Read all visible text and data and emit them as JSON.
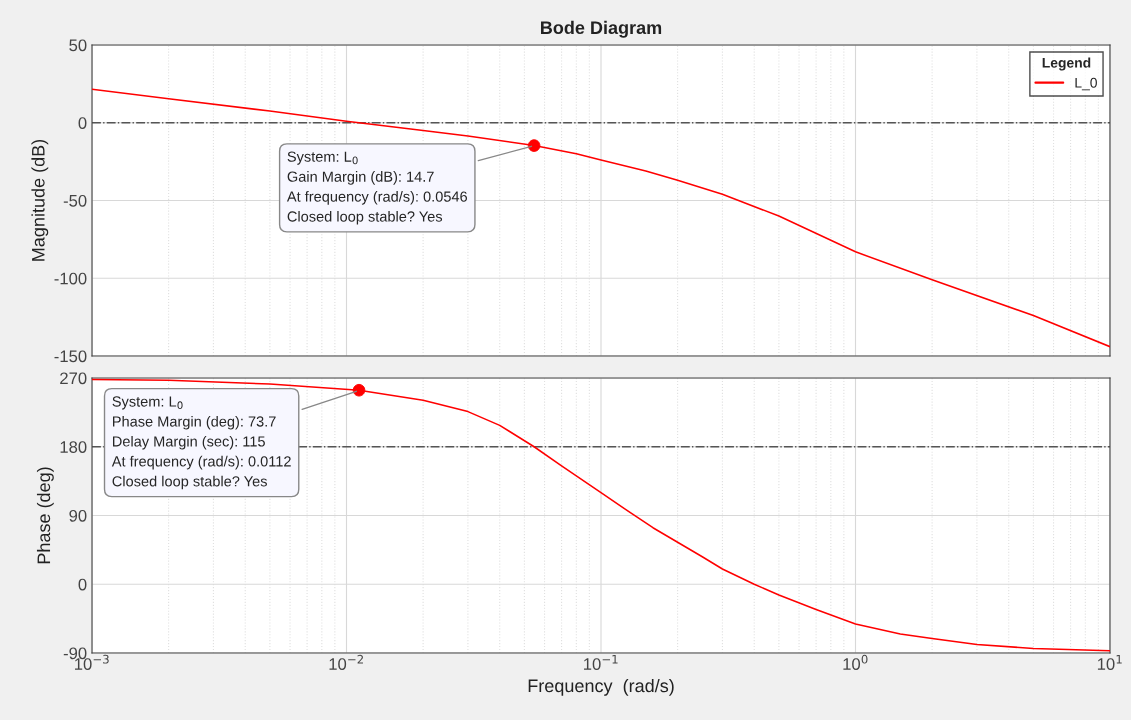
{
  "chart_data": [
    {
      "type": "line",
      "title": "Bode Diagram",
      "ylabel": "Magnitude (dB)",
      "log": "x",
      "grid": true,
      "legend": "top right",
      "legend_title": "Legend",
      "tick_labels": "y",
      "x": [
        0.001,
        0.002,
        0.005,
        0.01,
        0.02,
        0.03,
        0.0546,
        0.08,
        0.1,
        0.15,
        0.2,
        0.3,
        0.5,
        1,
        2,
        5,
        10
      ],
      "xlim": [
        0.001,
        10
      ],
      "xticks": [
        0.001,
        0.01,
        0.1,
        1,
        10
      ],
      "ylim": [
        -150,
        50
      ],
      "yticks": [
        -150,
        -100,
        -50,
        0,
        50
      ],
      "series": [
        {
          "name": "L_0",
          "color": "#ff0000",
          "values": [
            21.5,
            15.5,
            7.5,
            1,
            -5,
            -8.5,
            -14.7,
            -20,
            -24,
            -31,
            -37,
            -46,
            -60,
            -83,
            -101,
            -124,
            -144
          ]
        },
        {
          "type": "scatter",
          "color": "#ff0000",
          "x": [
            0.0546
          ],
          "values": [
            -14.7
          ]
        }
      ],
      "ref_lines": [
        {
          "axis": "y",
          "value": 0,
          "color": "#555555",
          "line_style": "dashdot"
        }
      ],
      "annotations": [
        {
          "text": "System: L$_{0}$\nGain Margin (dB): 14.7\nAt frequency (rad/s): 0.0546\nClosed loop stable? Yes",
          "x": 0.0546,
          "y": -14.7
        }
      ]
    },
    {
      "type": "line",
      "ylabel": "Phase (deg)",
      "xlabel": "Frequency  (rad/s)",
      "log": "x",
      "grid": true,
      "x": [
        0.001,
        0.002,
        0.005,
        0.0112,
        0.02,
        0.03,
        0.04,
        0.0546,
        0.07,
        0.1,
        0.13,
        0.16,
        0.2,
        0.25,
        0.3,
        0.4,
        0.5,
        0.7,
        1,
        1.5,
        2,
        3,
        5,
        10
      ],
      "xlim": [
        0.001,
        10
      ],
      "xticks": [
        {
          "value": 0.001,
          "label": "10$^{−3}$"
        },
        {
          "value": 0.01,
          "label": "10$^{−2}$"
        },
        {
          "value": 0.1,
          "label": "10$^{−1}$"
        },
        {
          "value": 1,
          "label": "10$^{0}$"
        },
        {
          "value": 10,
          "label": "10$^{1}$"
        }
      ],
      "ylim": [
        -90,
        270
      ],
      "yticks": [
        -90,
        0,
        90,
        180,
        270
      ],
      "series": [
        {
          "color": "#ff0000",
          "values": [
            268,
            267,
            262,
            254,
            241,
            226,
            208,
            180,
            155,
            120,
            94,
            74,
            55,
            36,
            20,
            0,
            -14,
            -33,
            -52,
            -65,
            -71,
            -79,
            -84,
            -87
          ]
        },
        {
          "type": "scatter",
          "color": "#ff0000",
          "x": [
            0.0112
          ],
          "values": [
            254
          ]
        }
      ],
      "ref_lines": [
        {
          "axis": "y",
          "value": 180,
          "color": "#555555",
          "line_style": "dashdot"
        }
      ],
      "annotations": [
        {
          "text": "System: L$_{0}$\nPhase Margin (deg): 73.7\nDelay Margin (sec): 115\nAt frequency (rad/s): 0.0112\nClosed loop stable? Yes",
          "x": 0.0112,
          "y": 253.7
        }
      ]
    }
  ]
}
